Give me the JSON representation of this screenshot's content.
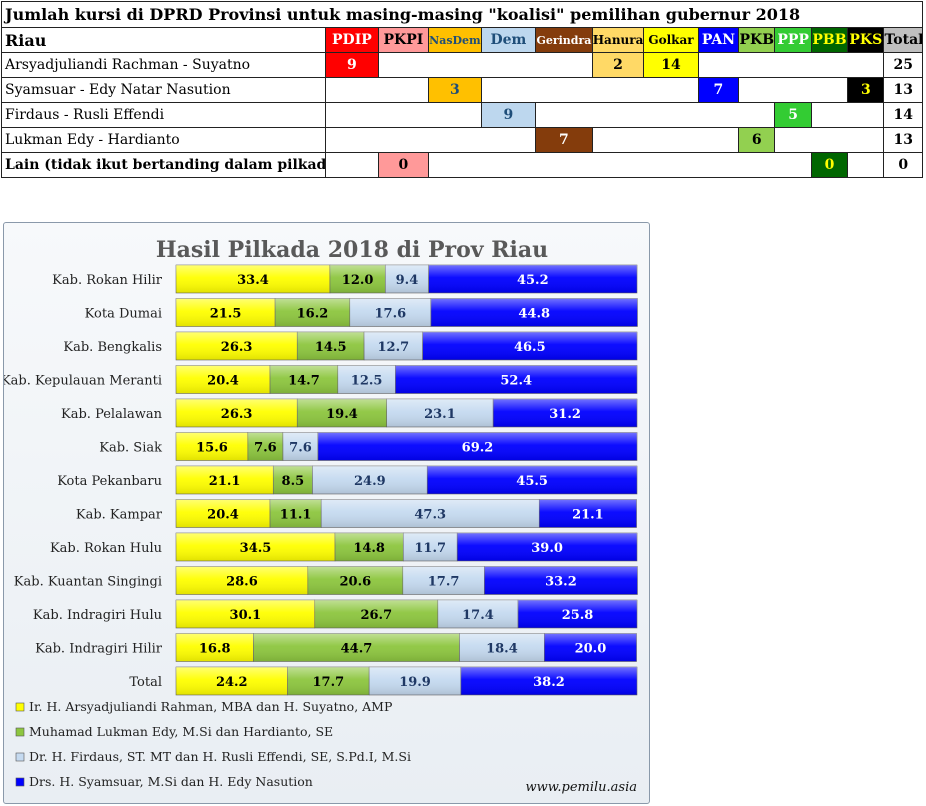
{
  "table": {
    "title": "Jumlah kursi di DPRD Provinsi untuk masing-masing \"koalisi\" pemilihan gubernur 2018",
    "region": "Riau",
    "parties": [
      {
        "name": "PDIP",
        "bg": "#ff0000",
        "fg": "#ffffff"
      },
      {
        "name": "PKPI",
        "bg": "#ff9999",
        "fg": "#000000"
      },
      {
        "name": "NasDem",
        "bg": "#ffc000",
        "fg": "#1f4e79"
      },
      {
        "name": "Dem",
        "bg": "#bdd7ee",
        "fg": "#1f4e79"
      },
      {
        "name": "Gerindra",
        "bg": "#843c0c",
        "fg": "#ffffff"
      },
      {
        "name": "Hanura",
        "bg": "#ffd966",
        "fg": "#000000"
      },
      {
        "name": "Golkar",
        "bg": "#ffff00",
        "fg": "#000000"
      },
      {
        "name": "PAN",
        "bg": "#0000ff",
        "fg": "#ffffff"
      },
      {
        "name": "PKB",
        "bg": "#92d050",
        "fg": "#000000"
      },
      {
        "name": "PPP",
        "bg": "#33cc33",
        "fg": "#ffffff"
      },
      {
        "name": "PBB",
        "bg": "#006600",
        "fg": "#ffff00"
      },
      {
        "name": "PKS",
        "bg": "#000000",
        "fg": "#ffff00"
      }
    ],
    "total_label": "Total",
    "rows": [
      {
        "label": "Arsyadjuliandi Rachman - Suyatno",
        "bold": false,
        "cells": [
          "9",
          "",
          "",
          "",
          "",
          "2",
          "14",
          "",
          "",
          "",
          "",
          ""
        ],
        "total": "25"
      },
      {
        "label": "Syamsuar - Edy Natar Nasution",
        "bold": false,
        "cells": [
          "",
          "",
          "3",
          "",
          "",
          "",
          "",
          "7",
          "",
          "",
          "",
          "3"
        ],
        "total": "13"
      },
      {
        "label": "Firdaus - Rusli Effendi",
        "bold": false,
        "cells": [
          "",
          "",
          "",
          "9",
          "",
          "",
          "",
          "",
          "",
          "5",
          "",
          ""
        ],
        "total": "14"
      },
      {
        "label": "Lukman Edy - Hardianto",
        "bold": false,
        "cells": [
          "",
          "",
          "",
          "",
          "7",
          "",
          "",
          "",
          "6",
          "",
          "",
          ""
        ],
        "total": "13"
      },
      {
        "label": "Lain (tidak ikut bertanding dalam pilkada)",
        "bold": true,
        "cells": [
          "",
          "0",
          "",
          "",
          "",
          "",
          "",
          "",
          "",
          "",
          "0",
          ""
        ],
        "total": "0"
      }
    ]
  },
  "chart_data": {
    "type": "bar",
    "orientation": "horizontal",
    "stacked": true,
    "title": "Hasil Pilkada 2018 di Prov Riau",
    "categories": [
      "Kab. Rokan Hilir",
      "Kota Dumai",
      "Kab. Bengkalis",
      "Kab. Kepulauan Meranti",
      "Kab. Pelalawan",
      "Kab. Siak",
      "Kota Pekanbaru",
      "Kab. Kampar",
      "Kab. Rokan Hulu",
      "Kab. Kuantan Singingi",
      "Kab. Indragiri Hulu",
      "Kab. Indragiri Hilir",
      "Total"
    ],
    "series": [
      {
        "name": "Ir. H. Arsyadjuliandi Rahman, MBA dan H. Suyatno, AMP",
        "color": "#ffff00",
        "label_color": "#000000",
        "values": [
          33.4,
          21.5,
          26.3,
          20.4,
          26.3,
          15.6,
          21.1,
          20.4,
          34.5,
          28.6,
          30.1,
          16.8,
          24.2
        ]
      },
      {
        "name": "Muhamad Lukman Edy, M.Si dan Hardianto, SE",
        "color": "#8dc63f",
        "label_color": "#000000",
        "values": [
          12.0,
          16.2,
          14.5,
          14.7,
          19.4,
          7.6,
          8.5,
          11.1,
          14.8,
          20.6,
          26.7,
          44.7,
          17.7
        ]
      },
      {
        "name": "Dr. H. Firdaus, ST. MT dan H. Rusli Effendi, SE, S.Pd.I, M.Si",
        "color": "#c5daf0",
        "label_color": "#1f3864",
        "values": [
          9.4,
          17.6,
          12.7,
          12.5,
          23.1,
          7.6,
          24.9,
          47.3,
          11.7,
          17.7,
          17.4,
          18.4,
          19.9
        ]
      },
      {
        "name": "Drs. H. Syamsuar, M.Si dan H. Edy Nasution",
        "color": "#0000ff",
        "label_color": "#ffffff",
        "values": [
          45.2,
          44.8,
          46.5,
          52.4,
          31.2,
          69.2,
          45.5,
          21.1,
          39.0,
          33.2,
          25.8,
          20.0,
          38.2
        ]
      }
    ],
    "xlim": [
      0,
      100
    ],
    "grid": false,
    "legend_position": "bottom-left"
  },
  "watermark": "www.pemilu.asia"
}
